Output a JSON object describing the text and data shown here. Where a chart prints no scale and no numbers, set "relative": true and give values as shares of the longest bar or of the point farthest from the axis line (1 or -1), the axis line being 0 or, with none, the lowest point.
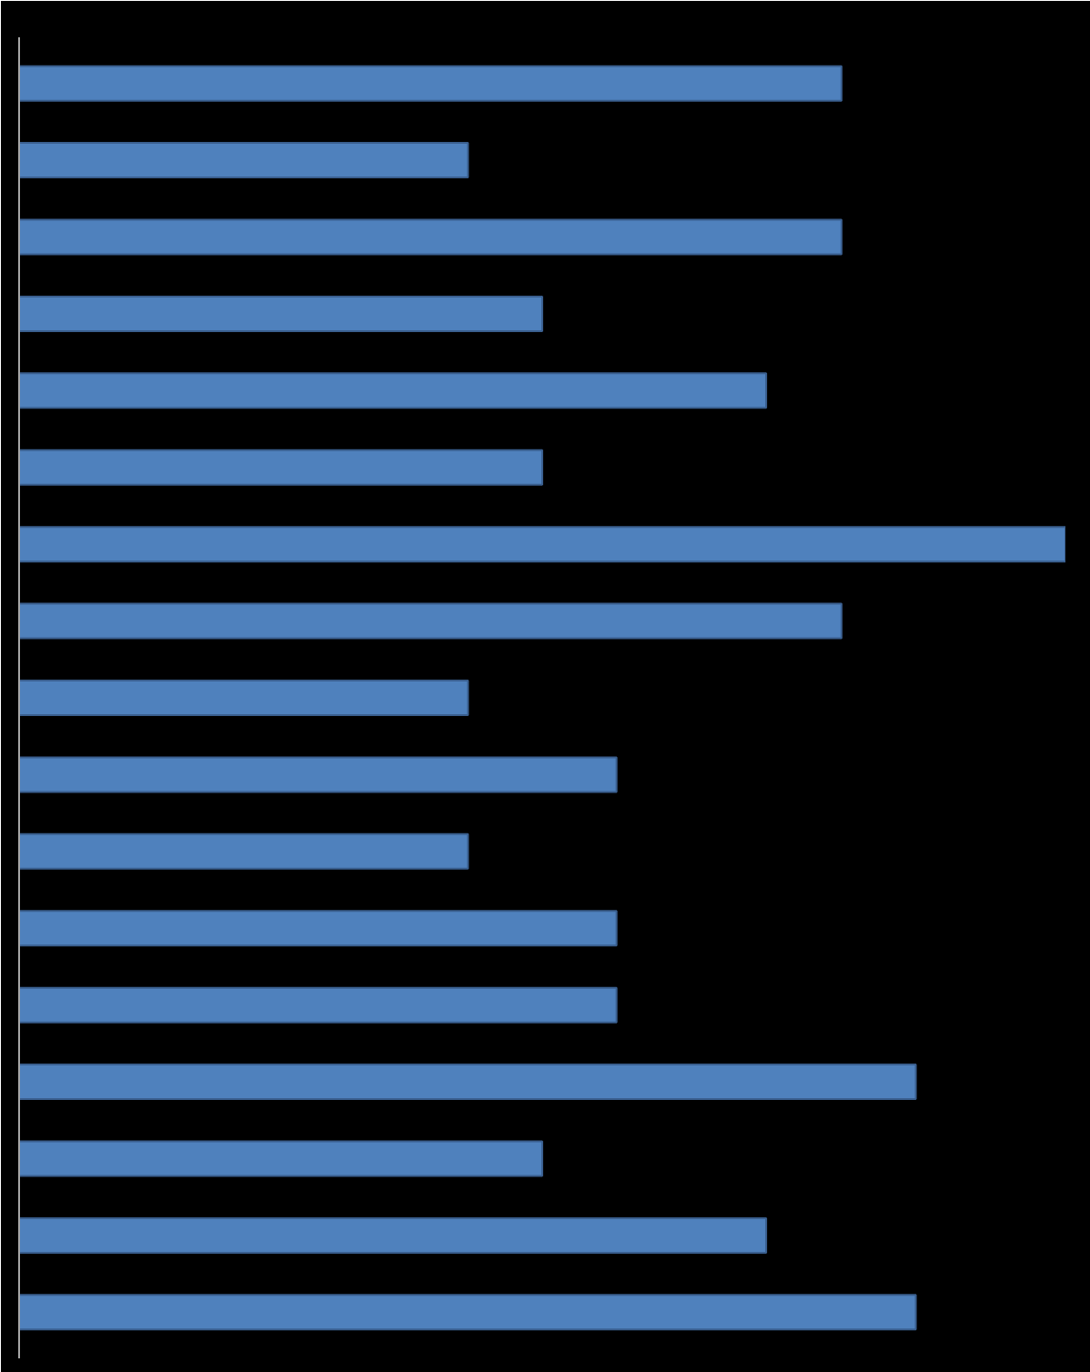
{
  "chart_data": {
    "type": "bar",
    "orientation": "horizontal",
    "relative": true,
    "color": "#4f81bd",
    "categories": [
      null,
      null,
      null,
      null,
      null,
      null,
      null,
      null,
      null,
      null,
      null,
      null,
      null,
      null,
      null,
      null,
      null
    ],
    "values": [
      0.786,
      0.429,
      0.786,
      0.5,
      0.714,
      0.5,
      1,
      0.786,
      0.429,
      0.571,
      0.429,
      0.571,
      0.571,
      0.857,
      0.5,
      0.714,
      0.857
    ],
    "grid": false
  }
}
